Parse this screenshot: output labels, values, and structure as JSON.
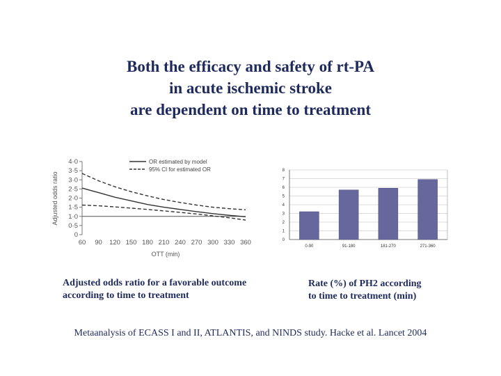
{
  "title": {
    "line1": "Both the efficacy and safety of rt-PA",
    "line2": "in acute ischemic stroke",
    "line3": "are dependent on time to treatment"
  },
  "captions": {
    "left_line1": "Adjusted odds ratio for a favorable outcome",
    "left_line2": "according to time to treatment",
    "right_line1": "Rate (%) of PH2 according",
    "right_line2": "to time to treatment (min)"
  },
  "footer": "Metaanalysis of ECASS I and II, ATLANTIS, and NINDS study. Hacke et al. Lancet 2004",
  "chart_data": [
    {
      "type": "line",
      "xlabel": "OTT (min)",
      "ylabel": "Adjusted odds ratio",
      "x_ticks": [
        "60",
        "90",
        "120",
        "150",
        "180",
        "210",
        "240",
        "270",
        "300",
        "330",
        "360"
      ],
      "y_ticks": [
        "0",
        "0·5",
        "1·0",
        "1·5",
        "2·0",
        "2·5",
        "3·0",
        "3·5",
        "4·0"
      ],
      "xlim": [
        60,
        360
      ],
      "ylim": [
        0,
        4.0
      ],
      "reference_line": 1.0,
      "legend": [
        "OR estimated by model",
        "95% CI for estimated OR"
      ],
      "x": [
        60,
        90,
        120,
        150,
        180,
        210,
        240,
        270,
        300,
        330,
        360
      ],
      "series": [
        {
          "name": "OR estimated by model",
          "style": "solid",
          "values": [
            2.55,
            2.3,
            2.05,
            1.85,
            1.65,
            1.5,
            1.38,
            1.26,
            1.15,
            1.06,
            0.98
          ]
        },
        {
          "name": "95% CI upper",
          "style": "dashed",
          "values": [
            3.35,
            2.95,
            2.62,
            2.35,
            2.12,
            1.92,
            1.76,
            1.62,
            1.5,
            1.42,
            1.36
          ]
        },
        {
          "name": "95% CI lower",
          "style": "dashed",
          "values": [
            1.62,
            1.58,
            1.52,
            1.45,
            1.38,
            1.3,
            1.22,
            1.13,
            1.03,
            0.92,
            0.8
          ]
        }
      ]
    },
    {
      "type": "bar",
      "categories": [
        "0-90",
        "91-180",
        "181-270",
        "271-360"
      ],
      "values": [
        3.2,
        5.7,
        5.9,
        6.9
      ],
      "y_ticks": [
        "0",
        "1",
        "2",
        "3",
        "4",
        "5",
        "6",
        "7",
        "8"
      ],
      "ylim": [
        0,
        8
      ],
      "bar_color": "#66679c"
    }
  ]
}
